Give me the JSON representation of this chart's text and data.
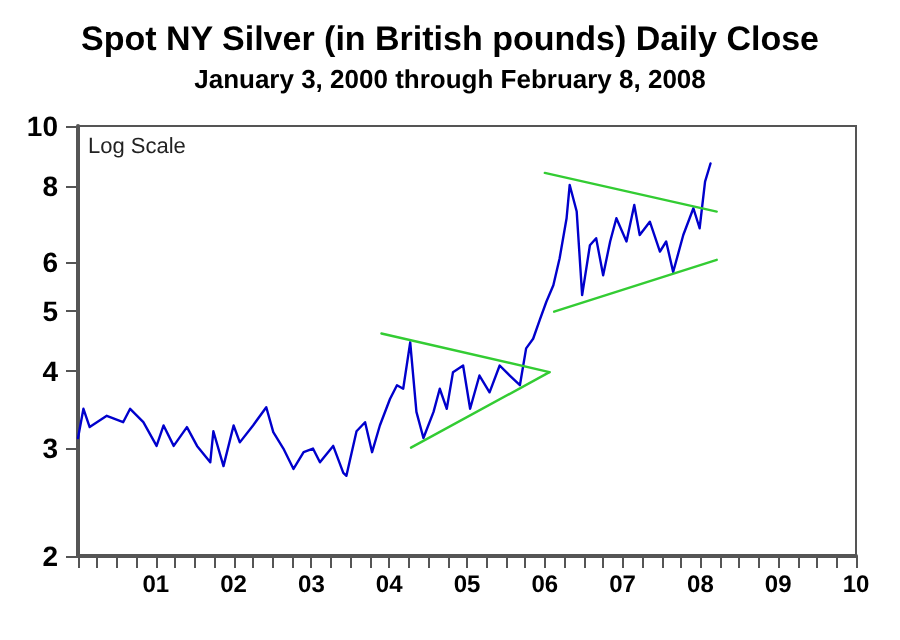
{
  "chart_data": {
    "type": "line",
    "title": "Spot NY Silver (in British pounds) Daily Close",
    "subtitle": "January 3, 2000 through February 8, 2008",
    "annotations": [
      "Log Scale"
    ],
    "log": true,
    "grid": false,
    "marker": "none",
    "line_style": "solid",
    "xlim": [
      2000,
      2010
    ],
    "xticks": [
      {
        "value": 2000,
        "label": null
      },
      {
        "value": 2000.25,
        "label": null
      },
      {
        "value": 2000.5,
        "label": null
      },
      {
        "value": 2000.75,
        "label": null
      },
      {
        "value": 2001,
        "label": "01"
      },
      {
        "value": 2001.25,
        "label": null
      },
      {
        "value": 2001.5,
        "label": null
      },
      {
        "value": 2001.75,
        "label": null
      },
      {
        "value": 2002,
        "label": "02"
      },
      {
        "value": 2002.25,
        "label": null
      },
      {
        "value": 2002.5,
        "label": null
      },
      {
        "value": 2002.75,
        "label": null
      },
      {
        "value": 2003,
        "label": "03"
      },
      {
        "value": 2003.25,
        "label": null
      },
      {
        "value": 2003.5,
        "label": null
      },
      {
        "value": 2003.75,
        "label": null
      },
      {
        "value": 2004,
        "label": "04"
      },
      {
        "value": 2004.25,
        "label": null
      },
      {
        "value": 2004.5,
        "label": null
      },
      {
        "value": 2004.75,
        "label": null
      },
      {
        "value": 2005,
        "label": "05"
      },
      {
        "value": 2005.25,
        "label": null
      },
      {
        "value": 2005.5,
        "label": null
      },
      {
        "value": 2005.75,
        "label": null
      },
      {
        "value": 2006,
        "label": "06"
      },
      {
        "value": 2006.25,
        "label": null
      },
      {
        "value": 2006.5,
        "label": null
      },
      {
        "value": 2006.75,
        "label": null
      },
      {
        "value": 2007,
        "label": "07"
      },
      {
        "value": 2007.25,
        "label": null
      },
      {
        "value": 2007.5,
        "label": null
      },
      {
        "value": 2007.75,
        "label": null
      },
      {
        "value": 2008,
        "label": "08"
      },
      {
        "value": 2008.25,
        "label": null
      },
      {
        "value": 2008.5,
        "label": null
      },
      {
        "value": 2008.75,
        "label": null
      },
      {
        "value": 2009,
        "label": "09"
      },
      {
        "value": 2009.25,
        "label": null
      },
      {
        "value": 2009.5,
        "label": null
      },
      {
        "value": 2009.75,
        "label": null
      },
      {
        "value": 2010,
        "label": "10"
      }
    ],
    "ylim": [
      2,
      10
    ],
    "yticks": [
      2,
      3,
      4,
      5,
      6,
      8,
      10
    ],
    "series": [
      {
        "color": "#0000cc",
        "x": [
          2000.0,
          2000.07,
          2000.15,
          2000.37,
          2000.58,
          2000.67,
          2000.84,
          2001.01,
          2001.1,
          2001.23,
          2001.4,
          2001.53,
          2001.7,
          2001.74,
          2001.87,
          2002.0,
          2002.08,
          2002.25,
          2002.42,
          2002.51,
          2002.64,
          2002.77,
          2002.9,
          2003.02,
          2003.11,
          2003.28,
          2003.41,
          2003.45,
          2003.58,
          2003.69,
          2003.78,
          2003.88,
          2004.01,
          2004.1,
          2004.18,
          2004.27,
          2004.35,
          2004.44,
          2004.57,
          2004.65,
          2004.74,
          2004.82,
          2004.95,
          2005.04,
          2005.16,
          2005.29,
          2005.42,
          2005.55,
          2005.68,
          2005.76,
          2005.85,
          2005.94,
          2006.02,
          2006.11,
          2006.19,
          2006.28,
          2006.32,
          2006.41,
          2006.48,
          2006.58,
          2006.66,
          2006.75,
          2006.84,
          2006.92,
          2007.05,
          2007.15,
          2007.22,
          2007.35,
          2007.48,
          2007.56,
          2007.65,
          2007.78,
          2007.91,
          2007.99,
          2008.06,
          2008.13
        ],
        "values": [
          3.11,
          3.47,
          3.24,
          3.38,
          3.3,
          3.47,
          3.3,
          3.02,
          3.26,
          3.02,
          3.24,
          3.02,
          2.84,
          3.19,
          2.8,
          3.26,
          3.06,
          3.26,
          3.49,
          3.18,
          2.99,
          2.77,
          2.95,
          2.99,
          2.84,
          3.02,
          2.73,
          2.7,
          3.19,
          3.3,
          2.95,
          3.26,
          3.6,
          3.79,
          3.74,
          4.45,
          3.43,
          3.11,
          3.43,
          3.74,
          3.47,
          3.98,
          4.08,
          3.47,
          3.93,
          3.69,
          4.08,
          3.93,
          3.79,
          4.35,
          4.51,
          4.86,
          5.18,
          5.51,
          6.09,
          7.08,
          8.02,
          7.26,
          5.31,
          6.4,
          6.57,
          5.72,
          6.49,
          7.08,
          6.49,
          7.44,
          6.65,
          6.99,
          6.25,
          6.49,
          5.79,
          6.65,
          7.35,
          6.82,
          8.12,
          8.69
        ]
      },
      {
        "color": "#33cc33",
        "x": [
          2003.9,
          2006.06
        ],
        "values": [
          4.6,
          3.98
        ]
      },
      {
        "color": "#33cc33",
        "x": [
          2004.28,
          2006.06
        ],
        "values": [
          3.0,
          3.98
        ]
      },
      {
        "color": "#33cc33",
        "x": [
          2006.0,
          2008.21
        ],
        "values": [
          8.39,
          7.26
        ]
      },
      {
        "color": "#33cc33",
        "x": [
          2006.12,
          2008.21
        ],
        "values": [
          4.99,
          6.06
        ]
      }
    ]
  }
}
